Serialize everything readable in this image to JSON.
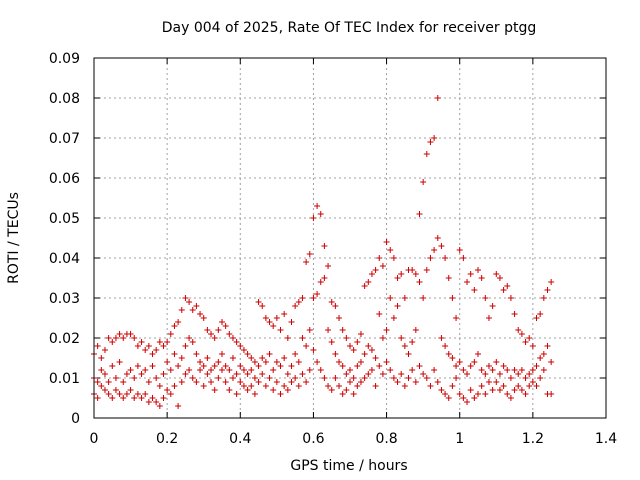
{
  "chart_data": {
    "type": "scatter",
    "title": "Day 004 of 2025, Rate Of TEC Index for receiver ptgg",
    "xlabel": "GPS time / hours",
    "ylabel": "ROTI / TECUs",
    "xlim": [
      0,
      1.4
    ],
    "ylim": [
      0,
      0.09
    ],
    "xticks": [
      "0",
      "0.2",
      "0.4",
      "0.6",
      "0.8",
      "1",
      "1.2",
      "1.4"
    ],
    "yticks": [
      "0",
      "0.01",
      "0.02",
      "0.03",
      "0.04",
      "0.05",
      "0.06",
      "0.07",
      "0.08",
      "0.09"
    ],
    "grid": true,
    "marker": "+",
    "color": "#cc0000",
    "points": [
      [
        0.0,
        0.016
      ],
      [
        0.0,
        0.01
      ],
      [
        0.0,
        0.006
      ],
      [
        0.01,
        0.018
      ],
      [
        0.01,
        0.009
      ],
      [
        0.01,
        0.005
      ],
      [
        0.02,
        0.015
      ],
      [
        0.02,
        0.008
      ],
      [
        0.02,
        0.012
      ],
      [
        0.03,
        0.017
      ],
      [
        0.03,
        0.007
      ],
      [
        0.03,
        0.011
      ],
      [
        0.04,
        0.02
      ],
      [
        0.04,
        0.009
      ],
      [
        0.04,
        0.006
      ],
      [
        0.05,
        0.019
      ],
      [
        0.05,
        0.013
      ],
      [
        0.05,
        0.005
      ],
      [
        0.06,
        0.02
      ],
      [
        0.06,
        0.01
      ],
      [
        0.06,
        0.007
      ],
      [
        0.07,
        0.021
      ],
      [
        0.07,
        0.014
      ],
      [
        0.07,
        0.006
      ],
      [
        0.08,
        0.02
      ],
      [
        0.08,
        0.009
      ],
      [
        0.08,
        0.005
      ],
      [
        0.09,
        0.021
      ],
      [
        0.09,
        0.011
      ],
      [
        0.09,
        0.006
      ],
      [
        0.1,
        0.021
      ],
      [
        0.1,
        0.012
      ],
      [
        0.1,
        0.007
      ],
      [
        0.11,
        0.02
      ],
      [
        0.11,
        0.01
      ],
      [
        0.11,
        0.005
      ],
      [
        0.12,
        0.018
      ],
      [
        0.12,
        0.013
      ],
      [
        0.12,
        0.006
      ],
      [
        0.13,
        0.019
      ],
      [
        0.13,
        0.011
      ],
      [
        0.13,
        0.005
      ],
      [
        0.14,
        0.017
      ],
      [
        0.14,
        0.012
      ],
      [
        0.14,
        0.006
      ],
      [
        0.15,
        0.018
      ],
      [
        0.15,
        0.009
      ],
      [
        0.15,
        0.004
      ],
      [
        0.16,
        0.016
      ],
      [
        0.16,
        0.013
      ],
      [
        0.16,
        0.005
      ],
      [
        0.17,
        0.017
      ],
      [
        0.17,
        0.01
      ],
      [
        0.17,
        0.004
      ],
      [
        0.18,
        0.019
      ],
      [
        0.18,
        0.008
      ],
      [
        0.18,
        0.003
      ],
      [
        0.19,
        0.018
      ],
      [
        0.19,
        0.011
      ],
      [
        0.19,
        0.005
      ],
      [
        0.2,
        0.019
      ],
      [
        0.2,
        0.014
      ],
      [
        0.2,
        0.007
      ],
      [
        0.21,
        0.021
      ],
      [
        0.21,
        0.012
      ],
      [
        0.21,
        0.006
      ],
      [
        0.22,
        0.023
      ],
      [
        0.22,
        0.016
      ],
      [
        0.22,
        0.008
      ],
      [
        0.23,
        0.024
      ],
      [
        0.23,
        0.013
      ],
      [
        0.23,
        0.003
      ],
      [
        0.24,
        0.027
      ],
      [
        0.24,
        0.015
      ],
      [
        0.24,
        0.009
      ],
      [
        0.25,
        0.03
      ],
      [
        0.25,
        0.018
      ],
      [
        0.25,
        0.011
      ],
      [
        0.26,
        0.029
      ],
      [
        0.26,
        0.02
      ],
      [
        0.26,
        0.012
      ],
      [
        0.27,
        0.027
      ],
      [
        0.27,
        0.019
      ],
      [
        0.27,
        0.01
      ],
      [
        0.28,
        0.028
      ],
      [
        0.28,
        0.016
      ],
      [
        0.28,
        0.009
      ],
      [
        0.29,
        0.026
      ],
      [
        0.29,
        0.014
      ],
      [
        0.29,
        0.012
      ],
      [
        0.3,
        0.025
      ],
      [
        0.3,
        0.013
      ],
      [
        0.3,
        0.008
      ],
      [
        0.31,
        0.022
      ],
      [
        0.31,
        0.015
      ],
      [
        0.31,
        0.011
      ],
      [
        0.32,
        0.021
      ],
      [
        0.32,
        0.012
      ],
      [
        0.32,
        0.009
      ],
      [
        0.33,
        0.02
      ],
      [
        0.33,
        0.013
      ],
      [
        0.33,
        0.007
      ],
      [
        0.34,
        0.022
      ],
      [
        0.34,
        0.014
      ],
      [
        0.34,
        0.01
      ],
      [
        0.35,
        0.024
      ],
      [
        0.35,
        0.016
      ],
      [
        0.35,
        0.012
      ],
      [
        0.36,
        0.023
      ],
      [
        0.36,
        0.013
      ],
      [
        0.36,
        0.009
      ],
      [
        0.37,
        0.021
      ],
      [
        0.37,
        0.012
      ],
      [
        0.37,
        0.007
      ],
      [
        0.38,
        0.02
      ],
      [
        0.38,
        0.015
      ],
      [
        0.38,
        0.01
      ],
      [
        0.39,
        0.019
      ],
      [
        0.39,
        0.011
      ],
      [
        0.39,
        0.006
      ],
      [
        0.4,
        0.018
      ],
      [
        0.4,
        0.013
      ],
      [
        0.4,
        0.009
      ],
      [
        0.41,
        0.017
      ],
      [
        0.41,
        0.012
      ],
      [
        0.41,
        0.008
      ],
      [
        0.42,
        0.016
      ],
      [
        0.42,
        0.011
      ],
      [
        0.42,
        0.007
      ],
      [
        0.43,
        0.015
      ],
      [
        0.43,
        0.012
      ],
      [
        0.43,
        0.008
      ],
      [
        0.44,
        0.014
      ],
      [
        0.44,
        0.01
      ],
      [
        0.44,
        0.006
      ],
      [
        0.45,
        0.029
      ],
      [
        0.45,
        0.013
      ],
      [
        0.45,
        0.009
      ],
      [
        0.46,
        0.028
      ],
      [
        0.46,
        0.015
      ],
      [
        0.46,
        0.011
      ],
      [
        0.47,
        0.025
      ],
      [
        0.47,
        0.014
      ],
      [
        0.47,
        0.008
      ],
      [
        0.48,
        0.024
      ],
      [
        0.48,
        0.016
      ],
      [
        0.48,
        0.01
      ],
      [
        0.49,
        0.023
      ],
      [
        0.49,
        0.012
      ],
      [
        0.49,
        0.007
      ],
      [
        0.5,
        0.025
      ],
      [
        0.5,
        0.014
      ],
      [
        0.5,
        0.009
      ],
      [
        0.51,
        0.022
      ],
      [
        0.51,
        0.013
      ],
      [
        0.51,
        0.006
      ],
      [
        0.52,
        0.026
      ],
      [
        0.52,
        0.015
      ],
      [
        0.52,
        0.008
      ],
      [
        0.53,
        0.02
      ],
      [
        0.53,
        0.011
      ],
      [
        0.53,
        0.007
      ],
      [
        0.54,
        0.024
      ],
      [
        0.54,
        0.013
      ],
      [
        0.54,
        0.009
      ],
      [
        0.55,
        0.028
      ],
      [
        0.55,
        0.016
      ],
      [
        0.55,
        0.01
      ],
      [
        0.56,
        0.029
      ],
      [
        0.56,
        0.014
      ],
      [
        0.56,
        0.008
      ],
      [
        0.57,
        0.03
      ],
      [
        0.57,
        0.02
      ],
      [
        0.57,
        0.011
      ],
      [
        0.58,
        0.039
      ],
      [
        0.58,
        0.018
      ],
      [
        0.58,
        0.009
      ],
      [
        0.59,
        0.041
      ],
      [
        0.59,
        0.022
      ],
      [
        0.59,
        0.012
      ],
      [
        0.6,
        0.05
      ],
      [
        0.6,
        0.03
      ],
      [
        0.6,
        0.017
      ],
      [
        0.61,
        0.053
      ],
      [
        0.61,
        0.031
      ],
      [
        0.61,
        0.014
      ],
      [
        0.62,
        0.051
      ],
      [
        0.62,
        0.034
      ],
      [
        0.62,
        0.012
      ],
      [
        0.63,
        0.043
      ],
      [
        0.63,
        0.035
      ],
      [
        0.63,
        0.01
      ],
      [
        0.64,
        0.038
      ],
      [
        0.64,
        0.022
      ],
      [
        0.64,
        0.008
      ],
      [
        0.65,
        0.029
      ],
      [
        0.65,
        0.019
      ],
      [
        0.65,
        0.007
      ],
      [
        0.66,
        0.028
      ],
      [
        0.66,
        0.016
      ],
      [
        0.66,
        0.01
      ],
      [
        0.67,
        0.025
      ],
      [
        0.67,
        0.014
      ],
      [
        0.67,
        0.008
      ],
      [
        0.68,
        0.022
      ],
      [
        0.68,
        0.013
      ],
      [
        0.68,
        0.006
      ],
      [
        0.69,
        0.02
      ],
      [
        0.69,
        0.011
      ],
      [
        0.69,
        0.007
      ],
      [
        0.7,
        0.018
      ],
      [
        0.7,
        0.012
      ],
      [
        0.7,
        0.009
      ],
      [
        0.71,
        0.017
      ],
      [
        0.71,
        0.01
      ],
      [
        0.71,
        0.006
      ],
      [
        0.72,
        0.019
      ],
      [
        0.72,
        0.013
      ],
      [
        0.72,
        0.008
      ],
      [
        0.73,
        0.021
      ],
      [
        0.73,
        0.014
      ],
      [
        0.73,
        0.009
      ],
      [
        0.74,
        0.033
      ],
      [
        0.74,
        0.016
      ],
      [
        0.74,
        0.01
      ],
      [
        0.75,
        0.034
      ],
      [
        0.75,
        0.018
      ],
      [
        0.75,
        0.011
      ],
      [
        0.76,
        0.036
      ],
      [
        0.76,
        0.017
      ],
      [
        0.76,
        0.012
      ],
      [
        0.77,
        0.037
      ],
      [
        0.77,
        0.015
      ],
      [
        0.77,
        0.008
      ],
      [
        0.78,
        0.04
      ],
      [
        0.78,
        0.026
      ],
      [
        0.78,
        0.013
      ],
      [
        0.79,
        0.038
      ],
      [
        0.79,
        0.02
      ],
      [
        0.79,
        0.011
      ],
      [
        0.8,
        0.044
      ],
      [
        0.8,
        0.022
      ],
      [
        0.8,
        0.014
      ],
      [
        0.81,
        0.042
      ],
      [
        0.81,
        0.03
      ],
      [
        0.81,
        0.012
      ],
      [
        0.82,
        0.04
      ],
      [
        0.82,
        0.025
      ],
      [
        0.82,
        0.01
      ],
      [
        0.83,
        0.035
      ],
      [
        0.83,
        0.028
      ],
      [
        0.83,
        0.009
      ],
      [
        0.84,
        0.036
      ],
      [
        0.84,
        0.02
      ],
      [
        0.84,
        0.011
      ],
      [
        0.85,
        0.03
      ],
      [
        0.85,
        0.018
      ],
      [
        0.85,
        0.008
      ],
      [
        0.86,
        0.037
      ],
      [
        0.86,
        0.016
      ],
      [
        0.86,
        0.01
      ],
      [
        0.87,
        0.037
      ],
      [
        0.87,
        0.019
      ],
      [
        0.87,
        0.012
      ],
      [
        0.88,
        0.036
      ],
      [
        0.88,
        0.022
      ],
      [
        0.88,
        0.009
      ],
      [
        0.89,
        0.051
      ],
      [
        0.89,
        0.034
      ],
      [
        0.89,
        0.013
      ],
      [
        0.9,
        0.059
      ],
      [
        0.9,
        0.03
      ],
      [
        0.9,
        0.011
      ],
      [
        0.91,
        0.066
      ],
      [
        0.91,
        0.037
      ],
      [
        0.91,
        0.01
      ],
      [
        0.92,
        0.069
      ],
      [
        0.92,
        0.04
      ],
      [
        0.92,
        0.008
      ],
      [
        0.93,
        0.07
      ],
      [
        0.93,
        0.042
      ],
      [
        0.93,
        0.012
      ],
      [
        0.94,
        0.08
      ],
      [
        0.94,
        0.045
      ],
      [
        0.94,
        0.009
      ],
      [
        0.95,
        0.043
      ],
      [
        0.95,
        0.02
      ],
      [
        0.95,
        0.007
      ],
      [
        0.96,
        0.04
      ],
      [
        0.96,
        0.018
      ],
      [
        0.96,
        0.006
      ],
      [
        0.97,
        0.035
      ],
      [
        0.97,
        0.016
      ],
      [
        0.97,
        0.005
      ],
      [
        0.98,
        0.03
      ],
      [
        0.98,
        0.015
      ],
      [
        0.98,
        0.008
      ],
      [
        0.99,
        0.025
      ],
      [
        0.99,
        0.013
      ],
      [
        0.99,
        0.01
      ],
      [
        1.0,
        0.042
      ],
      [
        1.0,
        0.014
      ],
      [
        1.0,
        0.006
      ],
      [
        1.01,
        0.04
      ],
      [
        1.01,
        0.012
      ],
      [
        1.01,
        0.005
      ],
      [
        1.02,
        0.034
      ],
      [
        1.02,
        0.011
      ],
      [
        1.02,
        0.004
      ],
      [
        1.03,
        0.036
      ],
      [
        1.03,
        0.013
      ],
      [
        1.03,
        0.007
      ],
      [
        1.04,
        0.032
      ],
      [
        1.04,
        0.014
      ],
      [
        1.04,
        0.005
      ],
      [
        1.05,
        0.037
      ],
      [
        1.05,
        0.016
      ],
      [
        1.05,
        0.006
      ],
      [
        1.06,
        0.035
      ],
      [
        1.06,
        0.012
      ],
      [
        1.06,
        0.008
      ],
      [
        1.07,
        0.03
      ],
      [
        1.07,
        0.011
      ],
      [
        1.07,
        0.006
      ],
      [
        1.08,
        0.025
      ],
      [
        1.08,
        0.013
      ],
      [
        1.08,
        0.009
      ],
      [
        1.09,
        0.028
      ],
      [
        1.09,
        0.012
      ],
      [
        1.09,
        0.007
      ],
      [
        1.1,
        0.036
      ],
      [
        1.1,
        0.014
      ],
      [
        1.1,
        0.009
      ],
      [
        1.11,
        0.035
      ],
      [
        1.11,
        0.011
      ],
      [
        1.11,
        0.007
      ],
      [
        1.12,
        0.032
      ],
      [
        1.12,
        0.013
      ],
      [
        1.12,
        0.008
      ],
      [
        1.13,
        0.033
      ],
      [
        1.13,
        0.012
      ],
      [
        1.13,
        0.006
      ],
      [
        1.14,
        0.03
      ],
      [
        1.14,
        0.01
      ],
      [
        1.14,
        0.005
      ],
      [
        1.15,
        0.026
      ],
      [
        1.15,
        0.012
      ],
      [
        1.15,
        0.007
      ],
      [
        1.16,
        0.022
      ],
      [
        1.16,
        0.011
      ],
      [
        1.16,
        0.008
      ],
      [
        1.17,
        0.021
      ],
      [
        1.17,
        0.012
      ],
      [
        1.17,
        0.007
      ],
      [
        1.18,
        0.019
      ],
      [
        1.18,
        0.01
      ],
      [
        1.18,
        0.006
      ],
      [
        1.19,
        0.02
      ],
      [
        1.19,
        0.011
      ],
      [
        1.19,
        0.008
      ],
      [
        1.2,
        0.018
      ],
      [
        1.2,
        0.012
      ],
      [
        1.2,
        0.009
      ],
      [
        1.21,
        0.025
      ],
      [
        1.21,
        0.013
      ],
      [
        1.21,
        0.008
      ],
      [
        1.22,
        0.026
      ],
      [
        1.22,
        0.015
      ],
      [
        1.22,
        0.01
      ],
      [
        1.23,
        0.03
      ],
      [
        1.23,
        0.016
      ],
      [
        1.23,
        0.012
      ],
      [
        1.24,
        0.032
      ],
      [
        1.24,
        0.018
      ],
      [
        1.24,
        0.006
      ],
      [
        1.25,
        0.034
      ],
      [
        1.25,
        0.014
      ],
      [
        1.25,
        0.006
      ]
    ]
  }
}
